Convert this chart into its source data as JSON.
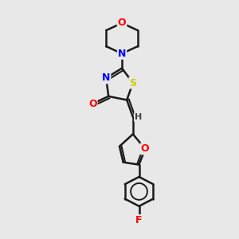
{
  "background_color": "#e8e8e8",
  "bond_color": "#1a1a1a",
  "bond_width": 1.8,
  "atom_colors": {
    "O": "#ff0000",
    "N": "#0000ff",
    "S": "#cccc00",
    "F": "#ff0000",
    "H": "#404040",
    "C": "#1a1a1a"
  },
  "font_size_atoms": 9,
  "figsize": [
    3.0,
    3.0
  ],
  "dpi": 100
}
